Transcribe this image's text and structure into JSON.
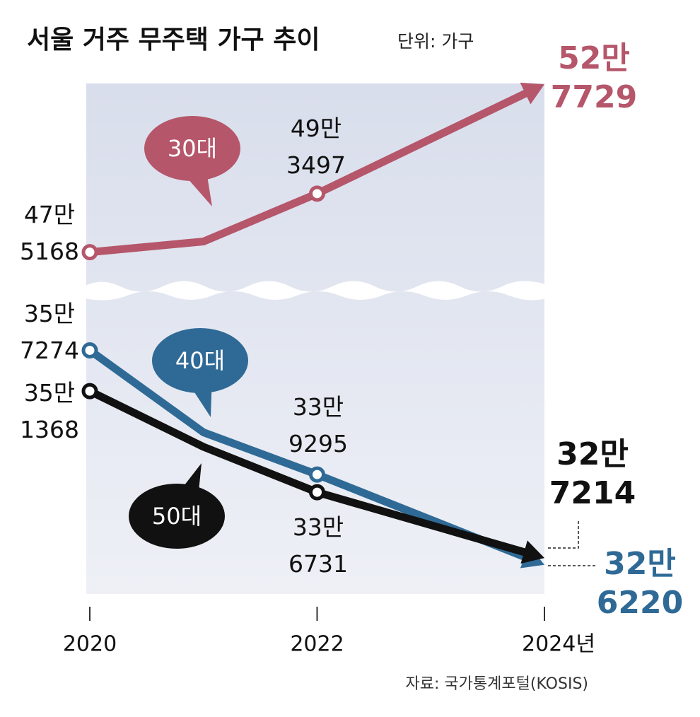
{
  "chart_data": {
    "type": "line",
    "title": "서울 거주 무주택 가구 추이",
    "subtitle": "단위: 가구",
    "source": "자료: 국가통계포털(KOSIS)",
    "x": [
      2020,
      2021,
      2022,
      2024
    ],
    "xlim": [
      2020,
      2024
    ],
    "xticks": [
      2020,
      2022,
      {
        "value": 2024,
        "label": "2024년"
      }
    ],
    "ylim": [
      322000,
      365000
    ],
    "y2lim": [
      466000,
      528000
    ],
    "series": [
      {
        "name": "30대",
        "color": "#b5566a",
        "axis": "y2",
        "values": [
          475168,
          478500,
          493497,
          527729
        ],
        "value_labels": [
          "47만\n5168",
          null,
          "49만\n3497",
          "52만\n7729"
        ]
      },
      {
        "name": "40대",
        "color": "#2f6a96",
        "values": [
          357274,
          345400,
          339295,
          326220
        ],
        "value_labels": [
          "35만\n7274",
          null,
          "33만\n9295",
          "32만\n6220"
        ]
      },
      {
        "name": "50대",
        "color": "#111111",
        "values": [
          351368,
          343300,
          336731,
          327214
        ],
        "value_labels": [
          "35만\n1368",
          null,
          "33만\n6731",
          "32만\n7214"
        ]
      }
    ]
  }
}
